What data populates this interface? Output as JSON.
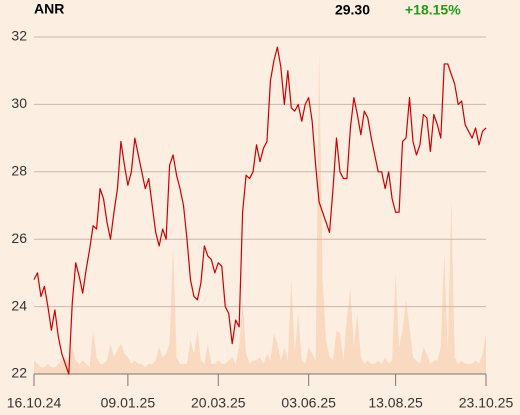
{
  "chart_data": {
    "type": "line",
    "title": "ANR",
    "last": "29.30",
    "change": "+18.15%",
    "categories": [
      "16.10.24",
      null,
      null,
      null,
      null,
      null,
      null,
      null,
      null,
      null,
      null,
      null,
      null,
      null,
      null,
      null,
      null,
      null,
      null,
      null,
      null,
      null,
      null,
      null,
      null,
      null,
      null,
      "09.01.25",
      null,
      null,
      null,
      null,
      null,
      null,
      null,
      null,
      null,
      null,
      null,
      null,
      null,
      null,
      null,
      null,
      null,
      null,
      null,
      null,
      null,
      null,
      null,
      null,
      null,
      "20.03.25",
      null,
      null,
      null,
      null,
      null,
      null,
      null,
      null,
      null,
      null,
      null,
      null,
      null,
      null,
      null,
      null,
      null,
      null,
      null,
      null,
      null,
      null,
      null,
      null,
      null,
      "03.06.25",
      null,
      null,
      null,
      null,
      null,
      null,
      null,
      null,
      null,
      null,
      null,
      null,
      null,
      null,
      null,
      null,
      null,
      null,
      null,
      null,
      null,
      null,
      null,
      null,
      "13.08.25",
      null,
      null,
      null,
      null,
      null,
      null,
      null,
      null,
      null,
      null,
      null,
      null,
      null,
      null,
      null,
      null,
      null,
      null,
      null,
      null,
      null,
      null,
      null,
      null,
      null,
      "23.10.25"
    ],
    "values": [
      24.8,
      25.0,
      24.3,
      24.6,
      24.0,
      23.3,
      23.9,
      23.1,
      22.6,
      22.3,
      22.0,
      24.1,
      25.3,
      24.9,
      24.4,
      25.1,
      25.7,
      26.4,
      26.3,
      27.5,
      27.2,
      26.5,
      26.0,
      26.8,
      27.5,
      28.9,
      28.2,
      27.6,
      28.0,
      29.0,
      28.5,
      28.0,
      27.5,
      27.8,
      27.0,
      26.2,
      25.8,
      26.3,
      26.0,
      28.2,
      28.5,
      27.9,
      27.5,
      27.0,
      26.0,
      24.8,
      24.3,
      24.2,
      24.7,
      25.8,
      25.5,
      25.4,
      25.0,
      25.3,
      25.2,
      24.0,
      23.8,
      22.9,
      23.6,
      23.4,
      26.8,
      27.9,
      27.8,
      28.0,
      28.8,
      28.3,
      28.7,
      28.9,
      30.7,
      31.3,
      31.7,
      31.1,
      30.0,
      31.0,
      29.9,
      29.8,
      30.0,
      29.5,
      30.0,
      30.2,
      29.5,
      28.2,
      27.1,
      26.8,
      26.5,
      26.2,
      27.5,
      29.0,
      28.0,
      27.8,
      27.8,
      29.3,
      30.2,
      29.7,
      29.1,
      29.8,
      29.6,
      29.0,
      28.5,
      28.0,
      28.0,
      27.5,
      28.0,
      27.2,
      26.8,
      26.8,
      28.9,
      29.0,
      30.2,
      28.9,
      28.5,
      28.8,
      29.7,
      29.6,
      28.6,
      29.7,
      29.4,
      29.0,
      31.2,
      31.2,
      30.9,
      30.6,
      30.0,
      30.1,
      29.4,
      29.2,
      29.0,
      29.3,
      28.8,
      29.2,
      29.3
    ],
    "color": "#cc0000",
    "volume": [
      4,
      3,
      2,
      2,
      3,
      2,
      2,
      3,
      4,
      5,
      3,
      8,
      4,
      3,
      4,
      3,
      2,
      13,
      5,
      3,
      3,
      4,
      9,
      5,
      7,
      9,
      6,
      5,
      3,
      4,
      3,
      3,
      2,
      3,
      3,
      4,
      8,
      5,
      6,
      9,
      38,
      5,
      3,
      3,
      3,
      10,
      6,
      13,
      4,
      3,
      9,
      3,
      3,
      4,
      3,
      3,
      4,
      5,
      3,
      8,
      22,
      6,
      3,
      4,
      4,
      5,
      3,
      6,
      4,
      12,
      9,
      4,
      8,
      4,
      28,
      6,
      18,
      4,
      3,
      8,
      6,
      4,
      96,
      28,
      10,
      5,
      4,
      13,
      12,
      4,
      17,
      25,
      8,
      18,
      5,
      3,
      4,
      3,
      3,
      4,
      3,
      5,
      3,
      4,
      30,
      8,
      13,
      22,
      14,
      5,
      4,
      3,
      8,
      6,
      3,
      4,
      4,
      8,
      36,
      6,
      52,
      5,
      3,
      4,
      3,
      3,
      3,
      4,
      3,
      6,
      12
    ],
    "volume_color": "#f9d9bf",
    "y2lim": [
      0,
      100
    ],
    "ylim": [
      22,
      32
    ],
    "yticks": [
      22,
      24,
      26,
      28,
      30,
      32
    ],
    "grid": true
  }
}
